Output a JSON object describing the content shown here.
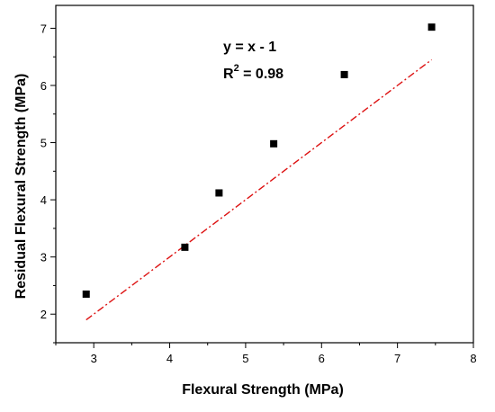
{
  "chart_data": {
    "type": "scatter",
    "title": "",
    "xlabel": "Flexural Strength (MPa)",
    "ylabel": "Residual Flexural Strength (MPa)",
    "xlim": [
      2.5,
      8.0
    ],
    "ylim": [
      1.5,
      7.4
    ],
    "x_ticks": [
      3,
      4,
      5,
      6,
      7,
      8
    ],
    "y_ticks": [
      2,
      3,
      4,
      5,
      6,
      7
    ],
    "grid": false,
    "legend": "none",
    "series": [
      {
        "points": [
          {
            "x": 2.9,
            "y": 2.35
          },
          {
            "x": 4.2,
            "y": 3.17
          },
          {
            "x": 4.65,
            "y": 4.12
          },
          {
            "x": 5.37,
            "y": 4.98
          },
          {
            "x": 6.3,
            "y": 6.19
          },
          {
            "x": 7.45,
            "y": 7.02
          }
        ],
        "marker": "square",
        "color": "#000000"
      }
    ],
    "fit_line": {
      "equation": "y = x - 1",
      "slope": 1,
      "intercept": -1,
      "x_range": [
        2.9,
        7.45
      ],
      "color": "#dd1111",
      "style": "dash-dot"
    },
    "annotations": {
      "equation": "y = x - 1",
      "r2_prefix": "R",
      "r2_sup": "2",
      "r2_value": " = 0.98"
    }
  }
}
